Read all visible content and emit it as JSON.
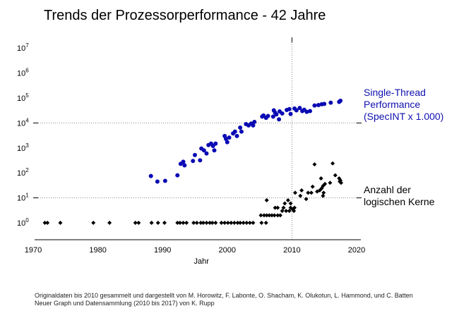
{
  "chart_data": {
    "type": "scatter",
    "title": "Trends der Prozessorperformance - 42 Jahre",
    "xlabel": "Jahr",
    "ylabel": "",
    "x_scale": "linear",
    "y_scale": "log",
    "xlim": [
      1970,
      2020
    ],
    "ylim_log10": [
      -0.6,
      7.3
    ],
    "x_ticks": [
      "1970",
      "1980",
      "1990",
      "2000",
      "2010",
      "2020"
    ],
    "x_tick_values": [
      1970,
      1980,
      1990,
      2000,
      2010,
      2020
    ],
    "y_ticks": [
      {
        "base": "10",
        "exp": "0",
        "log": 0
      },
      {
        "base": "10",
        "exp": "1",
        "log": 1
      },
      {
        "base": "10",
        "exp": "2",
        "log": 2
      },
      {
        "base": "10",
        "exp": "3",
        "log": 3
      },
      {
        "base": "10",
        "exp": "4",
        "log": 4
      },
      {
        "base": "10",
        "exp": "5",
        "log": 5
      },
      {
        "base": "10",
        "exp": "6",
        "log": 6
      },
      {
        "base": "10",
        "exp": "7",
        "log": 7
      }
    ],
    "reference_lines": {
      "horizontal_log": [
        1,
        4
      ],
      "vertical_year": 2010
    },
    "series": [
      {
        "name": "Single-Thread Performance (SpecINT x 1.000)",
        "legend_lines": [
          "Single-Thread",
          "Performance",
          "(SpecINT x 1.000)"
        ],
        "color": "#0a0ab4",
        "marker": "circle",
        "points": [
          [
            1988.2,
            75
          ],
          [
            1989.2,
            45
          ],
          [
            1990.4,
            48
          ],
          [
            1992.3,
            80
          ],
          [
            1992.8,
            230
          ],
          [
            1993.2,
            280
          ],
          [
            1993.4,
            200
          ],
          [
            1994.7,
            300
          ],
          [
            1995.0,
            520
          ],
          [
            1995.8,
            320
          ],
          [
            1996.0,
            950
          ],
          [
            1996.4,
            800
          ],
          [
            1996.8,
            600
          ],
          [
            1997.1,
            1300
          ],
          [
            1997.5,
            1500
          ],
          [
            1997.8,
            1200
          ],
          [
            1998.2,
            1500
          ],
          [
            1998.0,
            800
          ],
          [
            1999.6,
            3000
          ],
          [
            1999.8,
            2300
          ],
          [
            2000.0,
            1700
          ],
          [
            2000.3,
            2600
          ],
          [
            2000.9,
            3800
          ],
          [
            2001.2,
            4500
          ],
          [
            2001.5,
            3000
          ],
          [
            2002.0,
            6500
          ],
          [
            2002.2,
            4500
          ],
          [
            2002.9,
            9000
          ],
          [
            2003.3,
            8000
          ],
          [
            2003.7,
            9500
          ],
          [
            2004.2,
            11000
          ],
          [
            2004.0,
            8000
          ],
          [
            2005.4,
            18000
          ],
          [
            2005.6,
            20000
          ],
          [
            2006.0,
            16000
          ],
          [
            2006.3,
            19000
          ],
          [
            2007.1,
            18000
          ],
          [
            2007.4,
            26000
          ],
          [
            2007.6,
            22000
          ],
          [
            2007.2,
            32000
          ],
          [
            2008.1,
            29000
          ],
          [
            2008.5,
            24000
          ],
          [
            2008.0,
            14000
          ],
          [
            2009.2,
            33000
          ],
          [
            2009.6,
            36000
          ],
          [
            2009.8,
            23000
          ],
          [
            2010.4,
            38000
          ],
          [
            2010.7,
            32000
          ],
          [
            2011.2,
            40000
          ],
          [
            2011.6,
            30000
          ],
          [
            2011.9,
            34000
          ],
          [
            2012.3,
            28000
          ],
          [
            2012.8,
            30000
          ],
          [
            2013.5,
            50000
          ],
          [
            2014.1,
            52000
          ],
          [
            2014.6,
            56000
          ],
          [
            2015.0,
            58000
          ],
          [
            2016.0,
            65000
          ],
          [
            2017.3,
            70000
          ],
          [
            2017.5,
            78000
          ]
        ]
      },
      {
        "name": "Anzahl der logischen Kerne",
        "legend_lines": [
          "Anzahl der",
          "logischen Kerne"
        ],
        "color": "#000000",
        "marker": "diamond",
        "points": [
          [
            1971.8,
            1
          ],
          [
            1972.2,
            1
          ],
          [
            1974.2,
            1
          ],
          [
            1979.3,
            1
          ],
          [
            1981.8,
            1
          ],
          [
            1985.8,
            1
          ],
          [
            1986.3,
            1
          ],
          [
            1988.3,
            1
          ],
          [
            1989.3,
            1
          ],
          [
            1990.3,
            1
          ],
          [
            1992.3,
            1
          ],
          [
            1992.7,
            1
          ],
          [
            1993.2,
            1
          ],
          [
            1993.7,
            1
          ],
          [
            1994.8,
            1
          ],
          [
            1995.3,
            1
          ],
          [
            1995.9,
            1
          ],
          [
            1996.3,
            1
          ],
          [
            1996.8,
            1
          ],
          [
            1997.3,
            1
          ],
          [
            1997.7,
            1
          ],
          [
            1998.2,
            1
          ],
          [
            1999.1,
            1
          ],
          [
            1999.6,
            1
          ],
          [
            2000.1,
            1
          ],
          [
            2000.6,
            1
          ],
          [
            2001.1,
            1
          ],
          [
            2001.6,
            1
          ],
          [
            2002.0,
            1
          ],
          [
            2002.5,
            1
          ],
          [
            2003.0,
            1
          ],
          [
            2003.5,
            1
          ],
          [
            2004.0,
            1
          ],
          [
            2005.3,
            1
          ],
          [
            2006.0,
            1
          ],
          [
            2005.2,
            2
          ],
          [
            2005.7,
            2
          ],
          [
            2006.1,
            2
          ],
          [
            2006.5,
            2
          ],
          [
            2006.9,
            2
          ],
          [
            2007.3,
            2
          ],
          [
            2007.8,
            2
          ],
          [
            2008.2,
            2
          ],
          [
            2006.1,
            8
          ],
          [
            2007.4,
            4
          ],
          [
            2007.8,
            4
          ],
          [
            2008.7,
            4
          ],
          [
            2008.9,
            6
          ],
          [
            2008.5,
            3
          ],
          [
            2009.1,
            3
          ],
          [
            2009.4,
            8
          ],
          [
            2009.8,
            6
          ],
          [
            2009.8,
            4
          ],
          [
            2010.1,
            3.5
          ],
          [
            2010.3,
            3
          ],
          [
            2009.6,
            3
          ],
          [
            2010.4,
            4
          ],
          [
            2010.5,
            16
          ],
          [
            2011.5,
            20
          ],
          [
            2011.3,
            12
          ],
          [
            2012.2,
            9
          ],
          [
            2012.5,
            16
          ],
          [
            2013.0,
            16
          ],
          [
            2013.2,
            28
          ],
          [
            2013.9,
            18
          ],
          [
            2014.3,
            20
          ],
          [
            2014.6,
            24
          ],
          [
            2014.9,
            16
          ],
          [
            2014.8,
            30
          ],
          [
            2015.1,
            36
          ],
          [
            2013.5,
            220
          ],
          [
            2014.5,
            60
          ],
          [
            2014.8,
            12
          ],
          [
            2016.3,
            240
          ],
          [
            2016.7,
            80
          ],
          [
            2015.9,
            40
          ],
          [
            2017.3,
            60
          ],
          [
            2017.5,
            50
          ],
          [
            2017.6,
            40
          ],
          [
            2017.4,
            45
          ]
        ]
      }
    ],
    "legend_placement": "right"
  },
  "credits": {
    "line1": "Originaldaten bis 2010 gesammelt und dargestellt von M. Horowitz, F. Labonte, O. Shacham, K. Olukotun, L. Hammond, und C. Batten",
    "line2": "Neuer Graph und Datensammlung (2010 bis 2017) von K. Rupp"
  }
}
